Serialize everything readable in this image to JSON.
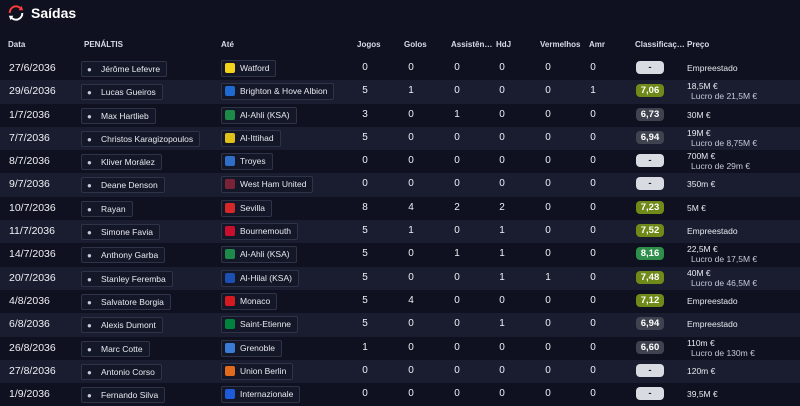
{
  "header": {
    "title": "Saídas"
  },
  "columns": {
    "date": "Data",
    "player": "PENÁLTIS",
    "club": "Até",
    "jogos": "Jogos",
    "golos": "Golos",
    "assist": "Assistên…",
    "hdj": "HdJ",
    "vermelhos": "Vermelhos",
    "amr": "Amr",
    "rating": "Classificaç…",
    "price": "Preço"
  },
  "colors": {
    "background": "#0f1120",
    "row_alt": "#1a1d30",
    "rating_gray": "#3f4350",
    "rating_olive": "#6f8a18",
    "rating_green": "#2e8e4a"
  },
  "rows": [
    {
      "date": "27/6/2036",
      "player": "Jérôme Lefevre",
      "club": "Watford",
      "club_color": "#f3d21b",
      "jogos": "0",
      "golos": "0",
      "assist": "0",
      "hdj": "0",
      "verm": "0",
      "amr": "0",
      "rating": "-",
      "rating_color": "#d9dbe2",
      "price1": "Empreestado",
      "price2": ""
    },
    {
      "date": "29/6/2036",
      "player": "Lucas Gueiros",
      "club": "Brighton & Hove Albion",
      "club_color": "#1f6ad0",
      "jogos": "5",
      "golos": "1",
      "assist": "0",
      "hdj": "0",
      "verm": "0",
      "amr": "1",
      "rating": "7,06",
      "rating_color": "#6f8a18",
      "price1": "18,5M €",
      "price2": "Lucro de 21,5M €"
    },
    {
      "date": "1/7/2036",
      "player": "Max Hartlieb",
      "club": "Al-Ahli (KSA)",
      "club_color": "#1d8a4a",
      "jogos": "3",
      "golos": "0",
      "assist": "1",
      "hdj": "0",
      "verm": "0",
      "amr": "0",
      "rating": "6,73",
      "rating_color": "#3f4350",
      "price1": "30M €",
      "price2": ""
    },
    {
      "date": "7/7/2036",
      "player": "Christos Karagizopoulos",
      "club": "Al-Ittihad",
      "club_color": "#e0c11a",
      "jogos": "5",
      "golos": "0",
      "assist": "0",
      "hdj": "0",
      "verm": "0",
      "amr": "0",
      "rating": "6,94",
      "rating_color": "#3f4350",
      "price1": "19M €",
      "price2": "Lucro de 8,75M €"
    },
    {
      "date": "8/7/2036",
      "player": "Kliver Morález",
      "club": "Troyes",
      "club_color": "#2f6fc8",
      "jogos": "0",
      "golos": "0",
      "assist": "0",
      "hdj": "0",
      "verm": "0",
      "amr": "0",
      "rating": "-",
      "rating_color": "#d9dbe2",
      "price1": "700M €",
      "price2": "Lucro de 29m €"
    },
    {
      "date": "9/7/2036",
      "player": "Deane Denson",
      "club": "West Ham United",
      "club_color": "#7a2336",
      "jogos": "0",
      "golos": "0",
      "assist": "0",
      "hdj": "0",
      "verm": "0",
      "amr": "0",
      "rating": "-",
      "rating_color": "#d9dbe2",
      "price1": "350m €",
      "price2": ""
    },
    {
      "date": "10/7/2036",
      "player": "Rayan",
      "club": "Sevilla",
      "club_color": "#d62828",
      "jogos": "8",
      "golos": "4",
      "assist": "2",
      "hdj": "2",
      "verm": "0",
      "amr": "0",
      "rating": "7,23",
      "rating_color": "#6f8a18",
      "price1": "5M €",
      "price2": ""
    },
    {
      "date": "11/7/2036",
      "player": "Simone Favia",
      "club": "Bournemouth",
      "club_color": "#c8102e",
      "jogos": "5",
      "golos": "1",
      "assist": "0",
      "hdj": "1",
      "verm": "0",
      "amr": "0",
      "rating": "7,52",
      "rating_color": "#6f8a18",
      "price1": "Empreestado",
      "price2": ""
    },
    {
      "date": "14/7/2036",
      "player": "Anthony Garba",
      "club": "Al-Ahli (KSA)",
      "club_color": "#1d8a4a",
      "jogos": "5",
      "golos": "0",
      "assist": "1",
      "hdj": "1",
      "verm": "0",
      "amr": "0",
      "rating": "8,16",
      "rating_color": "#2e8e4a",
      "price1": "22,5M €",
      "price2": "Lucro de 17,5M €"
    },
    {
      "date": "20/7/2036",
      "player": "Stanley Feremba",
      "club": "Al-Hilal (KSA)",
      "club_color": "#1b4fb0",
      "jogos": "5",
      "golos": "0",
      "assist": "0",
      "hdj": "1",
      "verm": "1",
      "amr": "0",
      "rating": "7,48",
      "rating_color": "#6f8a18",
      "price1": "40M €",
      "price2": "Lucro de 46,5M €"
    },
    {
      "date": "4/8/2036",
      "player": "Salvatore Borgia",
      "club": "Monaco",
      "club_color": "#d71920",
      "jogos": "5",
      "golos": "4",
      "assist": "0",
      "hdj": "0",
      "verm": "0",
      "amr": "0",
      "rating": "7,12",
      "rating_color": "#6f8a18",
      "price1": "Empreestado",
      "price2": ""
    },
    {
      "date": "6/8/2036",
      "player": "Alexis Dumont",
      "club": "Saint-Etienne",
      "club_color": "#00843d",
      "jogos": "5",
      "golos": "0",
      "assist": "0",
      "hdj": "1",
      "verm": "0",
      "amr": "0",
      "rating": "6,94",
      "rating_color": "#3f4350",
      "price1": "Empreestado",
      "price2": ""
    },
    {
      "date": "26/8/2036",
      "player": "Marc Cotte",
      "club": "Grenoble",
      "club_color": "#3a7bd5",
      "jogos": "1",
      "golos": "0",
      "assist": "0",
      "hdj": "0",
      "verm": "0",
      "amr": "0",
      "rating": "6,60",
      "rating_color": "#3f4350",
      "price1": "110m €",
      "price2": "Lucro de 130m €"
    },
    {
      "date": "27/8/2036",
      "player": "Antonio Corso",
      "club": "Union Berlin",
      "club_color": "#e26a1c",
      "jogos": "0",
      "golos": "0",
      "assist": "0",
      "hdj": "0",
      "verm": "0",
      "amr": "0",
      "rating": "-",
      "rating_color": "#d9dbe2",
      "price1": "120m €",
      "price2": ""
    },
    {
      "date": "1/9/2036",
      "player": "Fernando Silva",
      "club": "Internazionale",
      "club_color": "#1e5bd8",
      "jogos": "0",
      "golos": "0",
      "assist": "0",
      "hdj": "0",
      "verm": "0",
      "amr": "0",
      "rating": "-",
      "rating_color": "#d9dbe2",
      "price1": "39,5M €",
      "price2": ""
    }
  ]
}
